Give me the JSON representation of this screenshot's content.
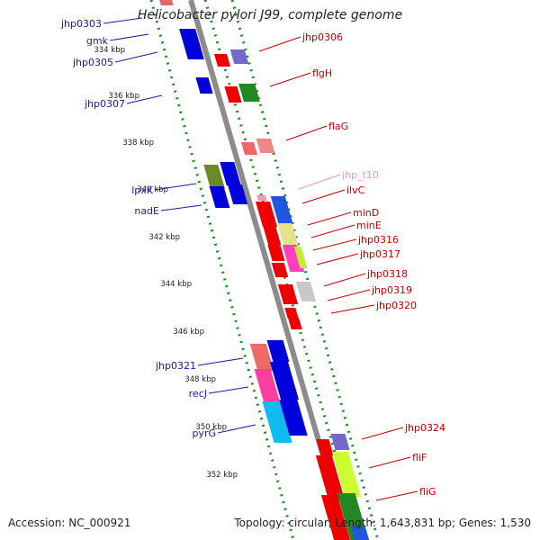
{
  "title": "Helicobacter pylori J99, complete genome",
  "accession": "Accession: NC_000921",
  "summary": "Topology: circular; Length: 1,643,831 bp; Genes: 1,530",
  "colors": {
    "backbone": "#8c8c8c",
    "dots": "#1a8a1a",
    "left_labels": "#1a1aa0",
    "right_labels": "#c00000",
    "trna_label": "#e89ab6"
  },
  "ticks": [
    "334 kbp",
    "336 kbp",
    "338 kbp",
    "340 kbp",
    "342 kbp",
    "344 kbp",
    "346 kbp",
    "348 kbp",
    "350 kbp",
    "352 kbp"
  ],
  "genes_left": [
    "jhp0303",
    "gmk",
    "jhp0305",
    "jhp0307",
    "lpxK",
    "nadE",
    "jhp0321",
    "recJ",
    "pyrG"
  ],
  "genes_right": [
    "jhp0306",
    "flgH",
    "flaG",
    "jhp_t10",
    "ilvC",
    "minD",
    "minE",
    "jhp0316",
    "jhp0317",
    "jhp0318",
    "jhp0319",
    "jhp0320",
    "jhp0324",
    "fliF",
    "fliG"
  ]
}
